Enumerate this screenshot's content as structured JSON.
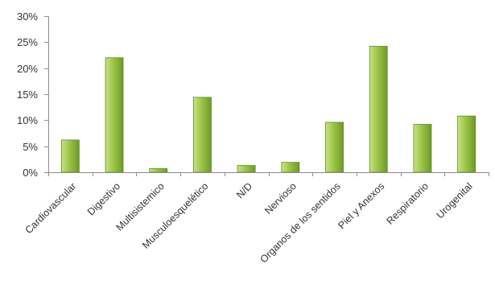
{
  "chart_data": {
    "type": "bar",
    "title": "",
    "xlabel": "",
    "ylabel": "",
    "ylim": [
      0,
      30
    ],
    "y_ticks": [
      "0%",
      "5%",
      "10%",
      "15%",
      "20%",
      "25%",
      "30%"
    ],
    "y_tick_values": [
      0,
      5,
      10,
      15,
      20,
      25,
      30
    ],
    "grid": false,
    "legend": "none",
    "categories": [
      "Cardiovascular",
      "Digestivo",
      "Multisistemico",
      "Musculoesquelético",
      "N/D",
      "Nervioso",
      "Organos de los sentidos",
      "Piel y Anexos",
      "Respiratorio",
      "Urogenital"
    ],
    "values": [
      6.2,
      22.0,
      0.7,
      14.4,
      1.3,
      1.9,
      9.6,
      24.2,
      9.2,
      10.8
    ],
    "colors": {
      "bar_light": "#c9e28a",
      "bar_mid": "#9bc446",
      "bar_dark": "#6f9a28",
      "bar_edge": "#5f8a1f",
      "axis": "#8c8c8c",
      "text": "#333333"
    }
  }
}
